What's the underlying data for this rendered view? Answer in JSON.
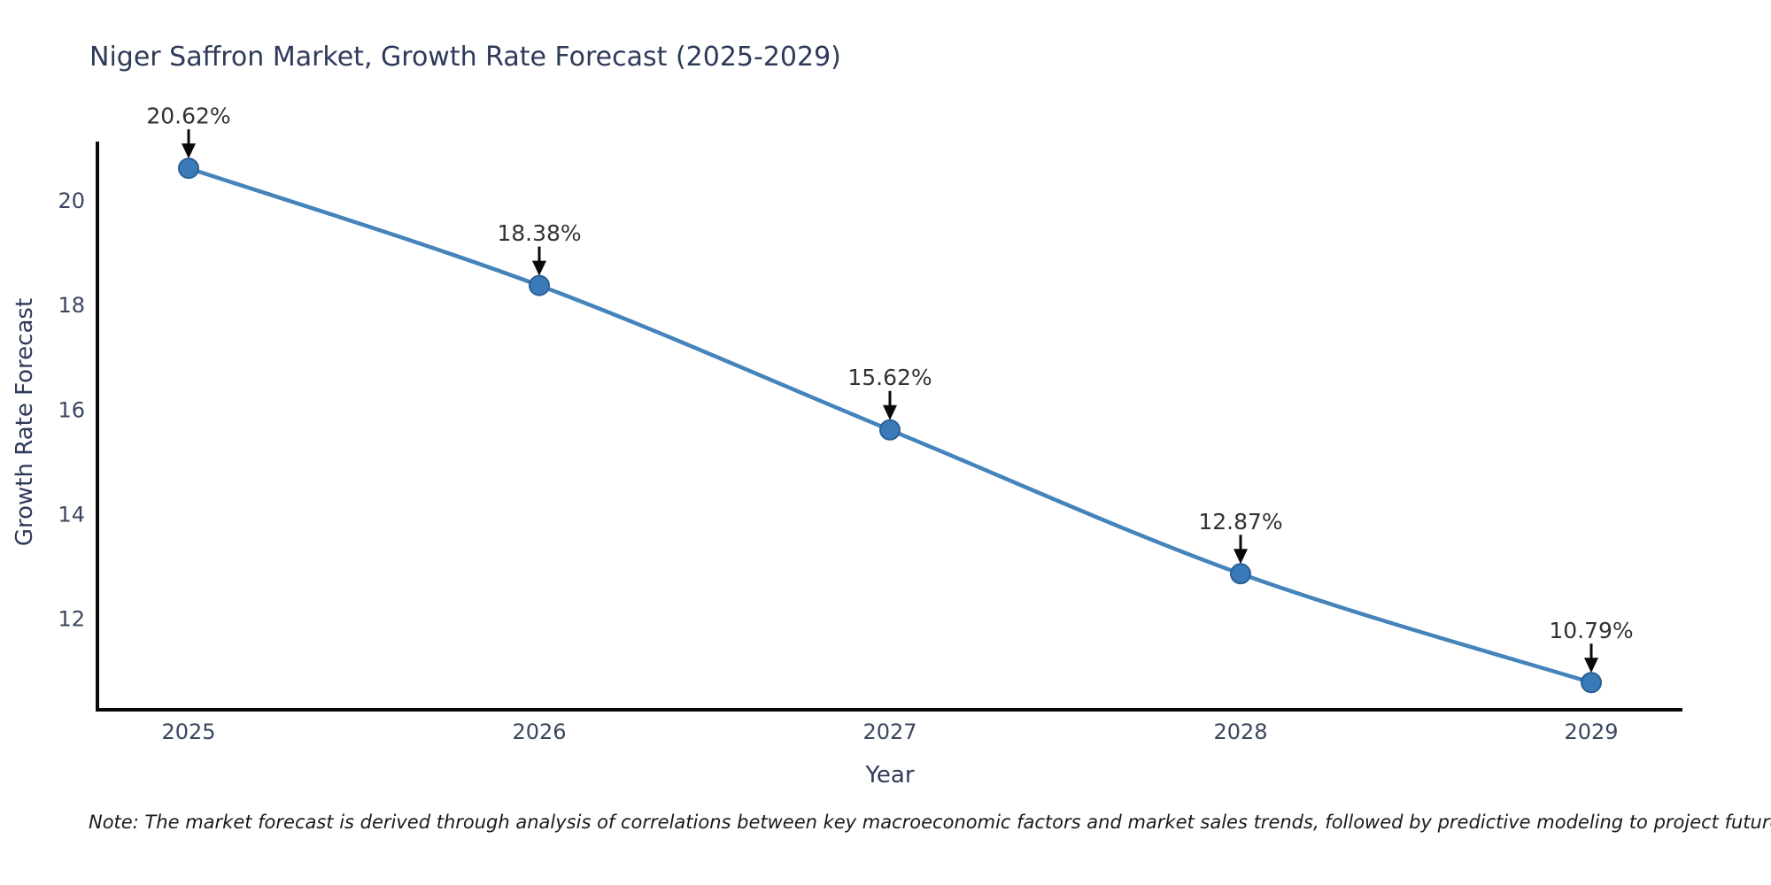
{
  "chart_data": {
    "type": "line",
    "title": "Niger Saffron Market, Growth Rate Forecast (2025-2029)",
    "xlabel": "Year",
    "ylabel": "Growth Rate Forecast",
    "categories": [
      2025,
      2026,
      2027,
      2028,
      2029
    ],
    "values": [
      20.62,
      18.38,
      15.62,
      12.87,
      10.79
    ],
    "point_labels": [
      "20.62%",
      "18.38%",
      "15.62%",
      "12.87%",
      "10.79%"
    ],
    "yticks": [
      12,
      14,
      16,
      18,
      20
    ],
    "ylim": [
      10.27,
      21.13
    ],
    "grid": false,
    "legend": "none",
    "note": "Note: The market forecast is derived through analysis of correlations between key macroeconomic factors and market sales trends, followed by predictive modeling to project future sales",
    "colors": {
      "line": "#4484bb",
      "marker_fill": "#3a7ab8",
      "marker_edge": "#2b6096",
      "axis": "#0a0a0a",
      "tick_label": "#3a4660",
      "axis_title": "#2e3a59",
      "data_label": "#323232",
      "arrow": "#0a0a0a",
      "background": "#ffffff"
    }
  }
}
